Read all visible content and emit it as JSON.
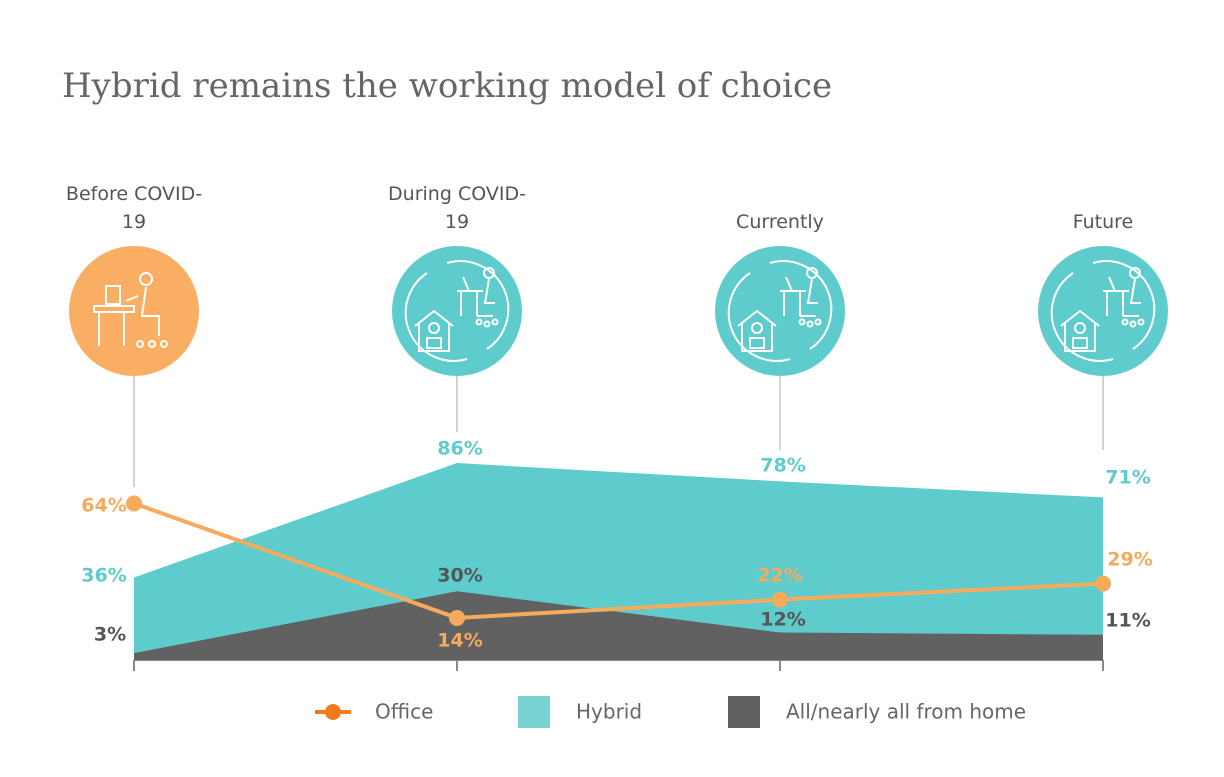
{
  "chart_data": {
    "type": "area-line",
    "title": "Hybrid remains the working model of choice",
    "categories": [
      "Before COVID-19",
      "During COVID-19",
      "Currently",
      "Future"
    ],
    "ylim": [
      0,
      100
    ],
    "series": [
      {
        "name": "Office",
        "kind": "line",
        "color": "#f5aa5c",
        "values": [
          64,
          14,
          22,
          29
        ],
        "value_labels": [
          "64%",
          "14%",
          "22%",
          "29%"
        ]
      },
      {
        "name": "Hybrid",
        "kind": "area",
        "color": "#5ecbcc",
        "values": [
          36,
          86,
          78,
          71
        ],
        "value_labels": [
          "36%",
          "86%",
          "78%",
          "71%"
        ]
      },
      {
        "name": "All/nearly all from home",
        "kind": "area",
        "color": "#616161",
        "values": [
          3,
          30,
          12,
          11
        ],
        "value_labels": [
          "3%",
          "30%",
          "12%",
          "11%"
        ]
      }
    ]
  }
}
